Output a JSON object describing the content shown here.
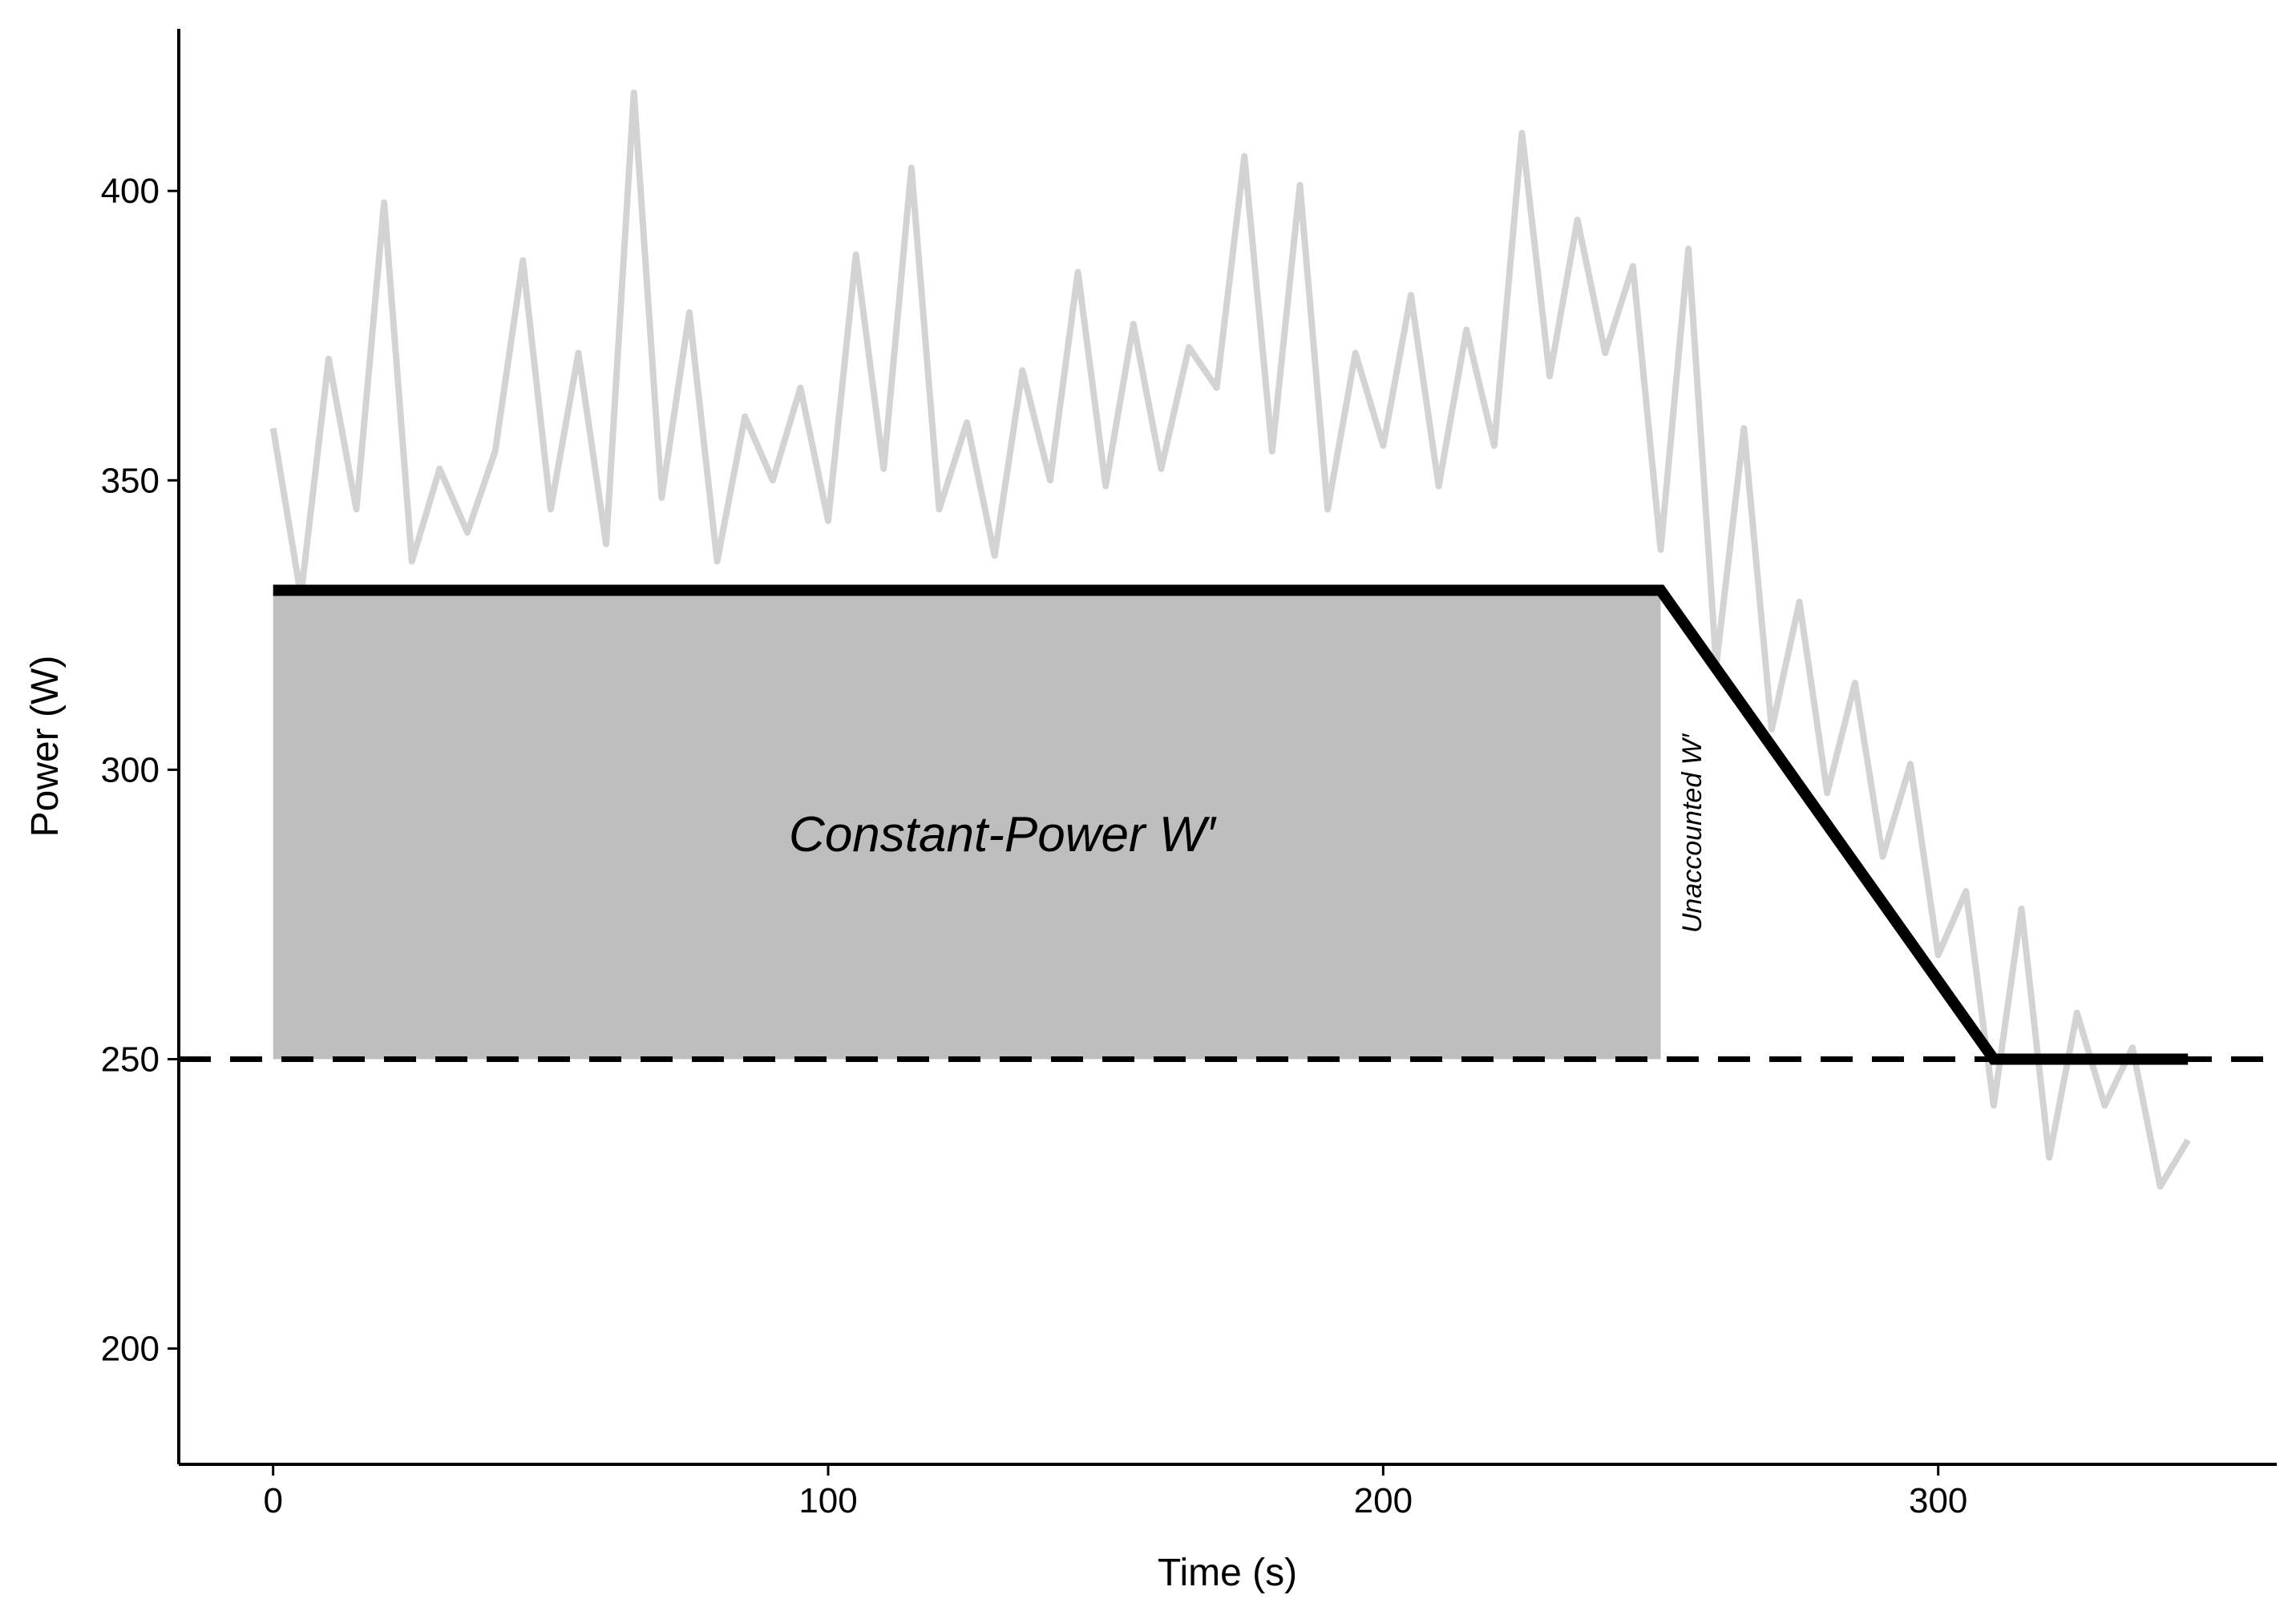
{
  "chart_data": {
    "type": "line",
    "x_label": "Time (s)",
    "y_label": "Power (W)",
    "xlim": [
      -17,
      361
    ],
    "ylim": [
      180,
      428
    ],
    "xticks": [
      0,
      100,
      200,
      300
    ],
    "yticks": [
      200,
      250,
      300,
      350,
      400
    ],
    "grid": false,
    "series": [
      {
        "color": "#d3d3d3",
        "x": [
          0,
          5,
          10,
          15,
          20,
          25,
          30,
          35,
          40,
          45,
          50,
          55,
          60,
          65,
          70,
          75,
          80,
          85,
          90,
          95,
          100,
          105,
          110,
          115,
          120,
          125,
          130,
          135,
          140,
          145,
          150,
          155,
          160,
          165,
          170,
          175,
          180,
          185,
          190,
          195,
          200,
          205,
          210,
          215,
          220,
          225,
          230,
          235,
          240,
          245,
          250,
          255,
          260,
          265,
          270,
          275,
          280,
          285,
          290,
          295,
          300,
          305,
          310,
          315,
          320,
          325,
          330,
          335,
          340,
          345
        ],
        "values": [
          359,
          330,
          371,
          345,
          398,
          336,
          352,
          341,
          355,
          388,
          345,
          372,
          339,
          417,
          347,
          379,
          336,
          361,
          350,
          366,
          343,
          389,
          352,
          404,
          345,
          360,
          337,
          369,
          350,
          386,
          349,
          377,
          352,
          373,
          366,
          406,
          355,
          401,
          345,
          372,
          356,
          382,
          349,
          376,
          356,
          410,
          368,
          395,
          372,
          387,
          338,
          390,
          318,
          359,
          307,
          329,
          296,
          315,
          285,
          301,
          268,
          279,
          242,
          276,
          233,
          258,
          242,
          252,
          228,
          236
        ]
      },
      {
        "color": "#000000",
        "x": [
          0,
          250,
          310,
          345
        ],
        "values": [
          331,
          331,
          250,
          250
        ]
      }
    ],
    "shaded_region": {
      "xlim": [
        0,
        250
      ],
      "ylim": [
        250,
        331
      ],
      "color": "#bebebe"
    },
    "hline": {
      "y": 250,
      "color": "#000000"
    },
    "annotations": [
      "Constant-Power W′",
      "Unaccounted W′"
    ]
  }
}
